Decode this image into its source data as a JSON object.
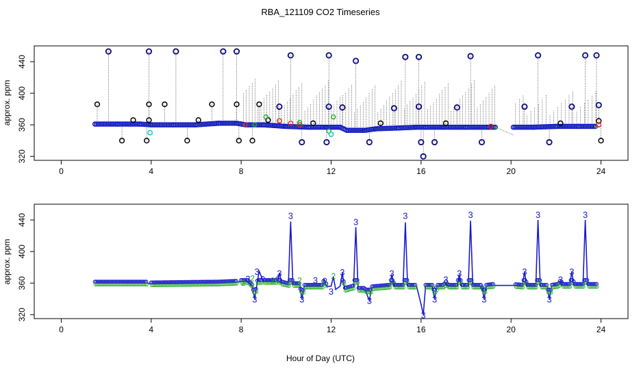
{
  "title": "RBA_121109  CO2 Timeseries",
  "xlabel": "Hour of Day (UTC)",
  "colors": {
    "raw": "#000000",
    "qc3": "#1a1acc",
    "qc2": "#22aa22",
    "flag": "#dd2222",
    "cyan": "#22cccc"
  },
  "chart_data": [
    {
      "type": "scatter",
      "name": "top-panel",
      "ylabel": "approx. ppm",
      "xlim": [
        -1.2,
        25.2
      ],
      "ylim": [
        315,
        460
      ],
      "xticks": [
        0,
        4,
        8,
        12,
        16,
        20,
        24
      ],
      "xtick_labels": [
        "0",
        "4",
        "8",
        "12",
        "16",
        "20",
        "24"
      ],
      "yticks": [
        320,
        360,
        400,
        440
      ],
      "ytick_labels": [
        "320",
        "360",
        "400",
        "440"
      ],
      "baseline": [
        [
          1.5,
          361
        ],
        [
          2.5,
          361
        ],
        [
          3.5,
          361
        ],
        [
          4.0,
          360
        ],
        [
          5.0,
          360
        ],
        [
          6.0,
          360
        ],
        [
          7.0,
          362
        ],
        [
          7.8,
          362
        ],
        [
          8.2,
          360
        ],
        [
          8.6,
          360
        ],
        [
          9.0,
          360
        ],
        [
          9.5,
          359
        ],
        [
          10.0,
          358
        ],
        [
          11.0,
          357
        ],
        [
          11.8,
          357
        ],
        [
          12.4,
          357
        ],
        [
          12.7,
          353
        ],
        [
          13.5,
          353
        ],
        [
          14.0,
          355
        ],
        [
          15.0,
          356
        ],
        [
          15.8,
          357
        ],
        [
          16.2,
          357
        ],
        [
          17.0,
          357
        ],
        [
          18.0,
          357
        ],
        [
          19.0,
          357
        ],
        [
          19.3,
          357
        ],
        [
          20.1,
          357
        ],
        [
          21.0,
          357
        ],
        [
          22.0,
          358
        ],
        [
          23.0,
          358
        ],
        [
          23.8,
          358
        ]
      ],
      "spikes": [
        [
          1.6,
          386
        ],
        [
          2.1,
          453
        ],
        [
          2.7,
          340
        ],
        [
          3.2,
          366
        ],
        [
          3.8,
          340
        ],
        [
          3.9,
          386
        ],
        [
          3.9,
          453
        ],
        [
          3.9,
          366
        ],
        [
          4.6,
          386
        ],
        [
          5.1,
          453
        ],
        [
          5.6,
          340
        ],
        [
          6.1,
          366
        ],
        [
          6.7,
          386
        ],
        [
          7.2,
          453
        ],
        [
          7.8,
          453
        ],
        [
          7.8,
          386
        ],
        [
          7.9,
          340
        ],
        [
          8.5,
          340
        ],
        [
          8.8,
          386
        ],
        [
          9.2,
          366
        ],
        [
          9.7,
          383
        ],
        [
          10.2,
          448
        ],
        [
          10.7,
          338
        ],
        [
          11.2,
          362
        ],
        [
          11.8,
          338
        ],
        [
          11.9,
          448
        ],
        [
          11.9,
          383
        ],
        [
          12.5,
          382
        ],
        [
          13.1,
          441
        ],
        [
          13.7,
          338
        ],
        [
          14.2,
          362
        ],
        [
          14.8,
          381
        ],
        [
          15.3,
          446
        ],
        [
          15.9,
          446
        ],
        [
          15.9,
          383
        ],
        [
          16.0,
          338
        ],
        [
          16.1,
          320
        ],
        [
          16.6,
          338
        ],
        [
          17.1,
          362
        ],
        [
          17.6,
          382
        ],
        [
          18.2,
          447
        ],
        [
          18.7,
          338
        ],
        [
          20.6,
          383
        ],
        [
          21.2,
          448
        ],
        [
          21.7,
          338
        ],
        [
          22.2,
          362
        ],
        [
          22.7,
          383
        ],
        [
          23.3,
          448
        ],
        [
          23.8,
          448
        ],
        [
          23.9,
          385
        ],
        [
          23.9,
          365
        ],
        [
          24.0,
          340
        ]
      ],
      "flags": [
        [
          8.2,
          360
        ],
        [
          9.7,
          365
        ],
        [
          10.2,
          362
        ],
        [
          10.6,
          360
        ],
        [
          19.1,
          358
        ],
        [
          23.9,
          360
        ]
      ],
      "green_points": [
        [
          8.6,
          360
        ],
        [
          9.1,
          370
        ],
        [
          10.6,
          363
        ],
        [
          12.1,
          370
        ],
        [
          11.9,
          352
        ]
      ],
      "cyan_points": [
        [
          3.95,
          350
        ],
        [
          12.0,
          348
        ]
      ]
    },
    {
      "type": "line",
      "name": "bottom-panel",
      "ylabel": "approx. ppm",
      "xlim": [
        -1.2,
        25.2
      ],
      "ylim": [
        315,
        460
      ],
      "xticks": [
        0,
        4,
        8,
        12,
        16,
        20,
        24
      ],
      "xtick_labels": [
        "0",
        "4",
        "8",
        "12",
        "16",
        "20",
        "24"
      ],
      "yticks": [
        320,
        360,
        400,
        440
      ],
      "ytick_labels": [
        "320",
        "360",
        "400",
        "440"
      ],
      "line": [
        [
          1.5,
          360
        ],
        [
          3.8,
          360
        ],
        [
          4.0,
          359
        ],
        [
          7.0,
          360
        ],
        [
          7.8,
          361
        ],
        [
          8.0,
          362
        ],
        [
          8.3,
          362
        ],
        [
          8.5,
          356
        ],
        [
          8.6,
          340
        ],
        [
          8.7,
          358
        ],
        [
          8.8,
          375
        ],
        [
          9.0,
          362
        ],
        [
          9.6,
          362
        ],
        [
          9.7,
          373
        ],
        [
          9.8,
          360
        ],
        [
          10.1,
          358
        ],
        [
          10.2,
          438
        ],
        [
          10.3,
          358
        ],
        [
          10.6,
          358
        ],
        [
          10.7,
          340
        ],
        [
          10.8,
          356
        ],
        [
          11.6,
          356
        ],
        [
          11.7,
          364
        ],
        [
          11.8,
          356
        ],
        [
          12.0,
          356
        ],
        [
          12.1,
          368
        ],
        [
          12.2,
          352
        ],
        [
          12.4,
          356
        ],
        [
          12.5,
          373
        ],
        [
          12.6,
          352
        ],
        [
          13.0,
          355
        ],
        [
          13.1,
          431
        ],
        [
          13.2,
          352
        ],
        [
          13.5,
          352
        ],
        [
          13.7,
          338
        ],
        [
          13.8,
          354
        ],
        [
          14.6,
          356
        ],
        [
          14.7,
          371
        ],
        [
          14.8,
          356
        ],
        [
          15.2,
          356
        ],
        [
          15.3,
          437
        ],
        [
          15.4,
          356
        ],
        [
          15.8,
          356
        ],
        [
          16.0,
          333
        ],
        [
          16.1,
          320
        ],
        [
          16.2,
          356
        ],
        [
          16.5,
          356
        ],
        [
          16.6,
          340
        ],
        [
          16.7,
          356
        ],
        [
          17.0,
          356
        ],
        [
          17.1,
          360
        ],
        [
          17.2,
          356
        ],
        [
          17.6,
          356
        ],
        [
          17.7,
          371
        ],
        [
          17.8,
          356
        ],
        [
          18.1,
          356
        ],
        [
          18.2,
          439
        ],
        [
          18.3,
          356
        ],
        [
          18.7,
          356
        ],
        [
          18.8,
          340
        ],
        [
          18.9,
          356
        ],
        [
          19.2,
          357
        ],
        [
          20.1,
          357
        ],
        [
          20.5,
          356
        ],
        [
          20.6,
          374
        ],
        [
          20.7,
          356
        ],
        [
          21.1,
          356
        ],
        [
          21.2,
          440
        ],
        [
          21.3,
          356
        ],
        [
          21.6,
          356
        ],
        [
          21.7,
          340
        ],
        [
          21.8,
          356
        ],
        [
          22.1,
          357
        ],
        [
          22.2,
          362
        ],
        [
          22.3,
          357
        ],
        [
          22.6,
          357
        ],
        [
          22.7,
          374
        ],
        [
          22.8,
          357
        ],
        [
          23.2,
          357
        ],
        [
          23.3,
          440
        ],
        [
          23.4,
          357
        ],
        [
          23.8,
          357
        ]
      ],
      "labels3": [
        [
          8.3,
          365,
          "3"
        ],
        [
          8.6,
          339,
          "3"
        ],
        [
          8.7,
          374,
          "3"
        ],
        [
          9.7,
          372,
          "3"
        ],
        [
          10.2,
          445,
          "3"
        ],
        [
          10.7,
          339,
          "3"
        ],
        [
          11.3,
          363,
          "3"
        ],
        [
          12.0,
          349,
          "3"
        ],
        [
          12.5,
          373,
          "3"
        ],
        [
          13.1,
          437,
          "3"
        ],
        [
          13.7,
          337,
          "3"
        ],
        [
          14.7,
          372,
          "3"
        ],
        [
          15.3,
          445,
          "3"
        ],
        [
          16.1,
          319,
          "3"
        ],
        [
          16.6,
          339,
          "3"
        ],
        [
          17.1,
          364,
          "3"
        ],
        [
          17.7,
          372,
          "3"
        ],
        [
          18.2,
          446,
          "3"
        ],
        [
          18.8,
          339,
          "3"
        ],
        [
          20.6,
          374,
          "3"
        ],
        [
          21.2,
          446,
          "3"
        ],
        [
          21.7,
          339,
          "3"
        ],
        [
          22.2,
          364,
          "3"
        ],
        [
          22.7,
          374,
          "3"
        ],
        [
          23.3,
          446,
          "3"
        ]
      ],
      "labels2": [
        [
          8.1,
          360,
          "2"
        ],
        [
          8.5,
          366,
          "2"
        ],
        [
          9.4,
          363,
          "2"
        ],
        [
          10.6,
          363,
          "2"
        ],
        [
          12.1,
          369,
          "2"
        ]
      ]
    }
  ]
}
